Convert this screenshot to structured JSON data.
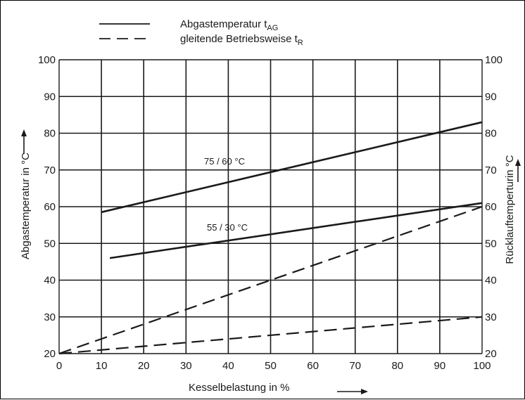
{
  "chart_data": {
    "type": "line",
    "xlabel": "Kesselbelastung in %",
    "ylabel_left": "Abgastemperatur in °C",
    "ylabel_right": "Rücklauftemperturin °C",
    "xlim": [
      0,
      100
    ],
    "ylim": [
      20,
      100
    ],
    "x_ticks": [
      "0",
      "10",
      "20",
      "30",
      "40",
      "50",
      "60",
      "70",
      "80",
      "90",
      "100"
    ],
    "y_ticks": [
      "20",
      "30",
      "40",
      "50",
      "60",
      "70",
      "80",
      "90",
      "100"
    ],
    "grid": true,
    "legend": {
      "position": "top",
      "entries": [
        {
          "style": "solid",
          "text": "Abgastemperatur t",
          "sub": "AG"
        },
        {
          "style": "dashed",
          "text": "gleitende Betriebsweise t",
          "sub": "R"
        }
      ]
    },
    "series": [
      {
        "label": "75 / 60 °C",
        "style": "solid",
        "x": [
          10,
          100
        ],
        "y": [
          58.5,
          83
        ]
      },
      {
        "label": "55 / 30 °C",
        "style": "solid",
        "x": [
          12,
          100
        ],
        "y": [
          46,
          61
        ]
      },
      {
        "style": "dashed",
        "x": [
          0,
          100
        ],
        "y": [
          20,
          60
        ]
      },
      {
        "style": "dashed",
        "x": [
          0,
          100
        ],
        "y": [
          20,
          30
        ]
      }
    ],
    "colors": {
      "ink": "#1a1a1a",
      "grid": "#1a1a1a",
      "background": "#ffffff"
    }
  }
}
